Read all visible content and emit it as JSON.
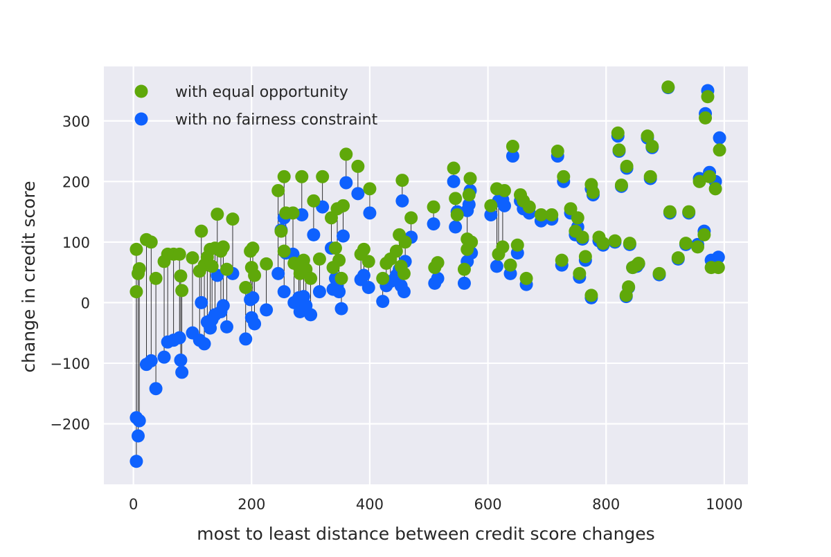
{
  "chart_data": {
    "type": "scatter",
    "title": "",
    "xlabel": "most to least distance between credit score changes",
    "ylabel": "change in credit score",
    "xlim": [
      -50,
      1040
    ],
    "ylim": [
      -300,
      390
    ],
    "xticks": [
      0,
      200,
      400,
      600,
      800,
      1000
    ],
    "yticks": [
      -200,
      -100,
      0,
      100,
      200,
      300
    ],
    "xtick_labels": [
      "0",
      "200",
      "400",
      "600",
      "800",
      "1000"
    ],
    "ytick_labels": [
      "−200",
      "−100",
      "0",
      "100",
      "200",
      "300"
    ],
    "grid": true,
    "legend_position": "upper-left",
    "background": "#eaeaf2",
    "connectors": "thin black vertical line joining each pair of points at the same x",
    "series": [
      {
        "name": "with equal opportunity",
        "color": "#5fa80a",
        "points": [
          [
            5,
            88
          ],
          [
            5,
            18
          ],
          [
            8,
            48
          ],
          [
            10,
            56
          ],
          [
            22,
            104
          ],
          [
            30,
            100
          ],
          [
            38,
            40
          ],
          [
            52,
            68
          ],
          [
            58,
            80
          ],
          [
            68,
            80
          ],
          [
            78,
            80
          ],
          [
            80,
            44
          ],
          [
            82,
            20
          ],
          [
            100,
            74
          ],
          [
            112,
            52
          ],
          [
            115,
            118
          ],
          [
            120,
            62
          ],
          [
            125,
            75
          ],
          [
            130,
            88
          ],
          [
            133,
            60
          ],
          [
            138,
            90
          ],
          [
            142,
            146
          ],
          [
            148,
            85
          ],
          [
            152,
            92
          ],
          [
            158,
            55
          ],
          [
            168,
            138
          ],
          [
            190,
            25
          ],
          [
            198,
            85
          ],
          [
            200,
            58
          ],
          [
            202,
            90
          ],
          [
            205,
            45
          ],
          [
            225,
            64
          ],
          [
            245,
            185
          ],
          [
            250,
            118
          ],
          [
            255,
            85
          ],
          [
            255,
            208
          ],
          [
            258,
            148
          ],
          [
            270,
            148
          ],
          [
            272,
            65
          ],
          [
            280,
            60
          ],
          [
            282,
            48
          ],
          [
            285,
            208
          ],
          [
            288,
            70
          ],
          [
            292,
            55
          ],
          [
            300,
            40
          ],
          [
            305,
            168
          ],
          [
            315,
            72
          ],
          [
            320,
            208
          ],
          [
            335,
            140
          ],
          [
            338,
            58
          ],
          [
            342,
            90
          ],
          [
            345,
            155
          ],
          [
            348,
            70
          ],
          [
            352,
            40
          ],
          [
            355,
            160
          ],
          [
            360,
            245
          ],
          [
            380,
            225
          ],
          [
            385,
            80
          ],
          [
            390,
            88
          ],
          [
            398,
            68
          ],
          [
            400,
            188
          ],
          [
            422,
            40
          ],
          [
            428,
            65
          ],
          [
            435,
            72
          ],
          [
            445,
            85
          ],
          [
            450,
            112
          ],
          [
            453,
            60
          ],
          [
            455,
            202
          ],
          [
            458,
            48
          ],
          [
            460,
            100
          ],
          [
            470,
            140
          ],
          [
            508,
            158
          ],
          [
            510,
            58
          ],
          [
            515,
            66
          ],
          [
            542,
            222
          ],
          [
            545,
            172
          ],
          [
            548,
            145
          ],
          [
            560,
            55
          ],
          [
            565,
            105
          ],
          [
            565,
            88
          ],
          [
            568,
            178
          ],
          [
            570,
            205
          ],
          [
            572,
            100
          ],
          [
            605,
            160
          ],
          [
            615,
            188
          ],
          [
            618,
            80
          ],
          [
            625,
            92
          ],
          [
            628,
            185
          ],
          [
            638,
            62
          ],
          [
            642,
            258
          ],
          [
            650,
            95
          ],
          [
            655,
            178
          ],
          [
            660,
            168
          ],
          [
            665,
            40
          ],
          [
            670,
            158
          ],
          [
            690,
            145
          ],
          [
            708,
            145
          ],
          [
            718,
            250
          ],
          [
            725,
            70
          ],
          [
            728,
            208
          ],
          [
            740,
            155
          ],
          [
            748,
            118
          ],
          [
            752,
            140
          ],
          [
            755,
            48
          ],
          [
            760,
            108
          ],
          [
            765,
            76
          ],
          [
            775,
            12
          ],
          [
            775,
            195
          ],
          [
            778,
            182
          ],
          [
            788,
            108
          ],
          [
            795,
            98
          ],
          [
            815,
            102
          ],
          [
            820,
            280
          ],
          [
            822,
            252
          ],
          [
            826,
            194
          ],
          [
            834,
            12
          ],
          [
            835,
            225
          ],
          [
            838,
            26
          ],
          [
            840,
            98
          ],
          [
            845,
            58
          ],
          [
            852,
            62
          ],
          [
            855,
            65
          ],
          [
            870,
            275
          ],
          [
            875,
            208
          ],
          [
            878,
            258
          ],
          [
            890,
            48
          ],
          [
            905,
            356
          ],
          [
            908,
            150
          ],
          [
            922,
            74
          ],
          [
            935,
            98
          ],
          [
            940,
            150
          ],
          [
            955,
            92
          ],
          [
            958,
            200
          ],
          [
            966,
            112
          ],
          [
            968,
            305
          ],
          [
            972,
            340
          ],
          [
            975,
            208
          ],
          [
            978,
            58
          ],
          [
            985,
            188
          ],
          [
            990,
            58
          ],
          [
            992,
            252
          ]
        ]
      },
      {
        "name": "with no fairness constraint",
        "color": "#0e61fe",
        "points": [
          [
            5,
            -262
          ],
          [
            5,
            -190
          ],
          [
            8,
            -220
          ],
          [
            10,
            -195
          ],
          [
            22,
            -102
          ],
          [
            30,
            -96
          ],
          [
            38,
            -142
          ],
          [
            52,
            -90
          ],
          [
            58,
            -65
          ],
          [
            68,
            -62
          ],
          [
            78,
            -58
          ],
          [
            80,
            -95
          ],
          [
            82,
            -115
          ],
          [
            100,
            -50
          ],
          [
            112,
            -62
          ],
          [
            115,
            0
          ],
          [
            120,
            -68
          ],
          [
            125,
            -32
          ],
          [
            130,
            -42
          ],
          [
            133,
            -28
          ],
          [
            138,
            -20
          ],
          [
            142,
            45
          ],
          [
            148,
            -15
          ],
          [
            152,
            -5
          ],
          [
            158,
            -40
          ],
          [
            168,
            48
          ],
          [
            190,
            -60
          ],
          [
            198,
            5
          ],
          [
            200,
            -25
          ],
          [
            202,
            8
          ],
          [
            205,
            -35
          ],
          [
            225,
            -12
          ],
          [
            245,
            48
          ],
          [
            250,
            120
          ],
          [
            255,
            18
          ],
          [
            255,
            140
          ],
          [
            258,
            82
          ],
          [
            270,
            80
          ],
          [
            272,
            0
          ],
          [
            280,
            8
          ],
          [
            282,
            -15
          ],
          [
            285,
            145
          ],
          [
            288,
            10
          ],
          [
            292,
            -5
          ],
          [
            300,
            -20
          ],
          [
            305,
            112
          ],
          [
            315,
            18
          ],
          [
            320,
            158
          ],
          [
            335,
            90
          ],
          [
            338,
            22
          ],
          [
            342,
            40
          ],
          [
            345,
            28
          ],
          [
            348,
            18
          ],
          [
            352,
            -10
          ],
          [
            355,
            110
          ],
          [
            360,
            198
          ],
          [
            380,
            180
          ],
          [
            385,
            38
          ],
          [
            390,
            45
          ],
          [
            398,
            25
          ],
          [
            400,
            148
          ],
          [
            422,
            2
          ],
          [
            428,
            28
          ],
          [
            435,
            35
          ],
          [
            445,
            45
          ],
          [
            450,
            55
          ],
          [
            453,
            28
          ],
          [
            455,
            168
          ],
          [
            458,
            18
          ],
          [
            460,
            68
          ],
          [
            470,
            108
          ],
          [
            508,
            130
          ],
          [
            510,
            32
          ],
          [
            515,
            40
          ],
          [
            542,
            200
          ],
          [
            545,
            125
          ],
          [
            548,
            150
          ],
          [
            560,
            32
          ],
          [
            565,
            68
          ],
          [
            565,
            152
          ],
          [
            568,
            162
          ],
          [
            570,
            185
          ],
          [
            572,
            82
          ],
          [
            605,
            145
          ],
          [
            615,
            60
          ],
          [
            618,
            168
          ],
          [
            625,
            170
          ],
          [
            628,
            160
          ],
          [
            638,
            48
          ],
          [
            642,
            242
          ],
          [
            650,
            82
          ],
          [
            655,
            168
          ],
          [
            660,
            155
          ],
          [
            665,
            30
          ],
          [
            670,
            148
          ],
          [
            690,
            135
          ],
          [
            708,
            138
          ],
          [
            718,
            242
          ],
          [
            725,
            62
          ],
          [
            728,
            200
          ],
          [
            740,
            148
          ],
          [
            748,
            112
          ],
          [
            752,
            125
          ],
          [
            755,
            42
          ],
          [
            760,
            105
          ],
          [
            765,
            70
          ],
          [
            775,
            8
          ],
          [
            775,
            188
          ],
          [
            778,
            178
          ],
          [
            788,
            102
          ],
          [
            795,
            95
          ],
          [
            815,
            100
          ],
          [
            820,
            275
          ],
          [
            822,
            250
          ],
          [
            826,
            192
          ],
          [
            834,
            10
          ],
          [
            835,
            222
          ],
          [
            838,
            25
          ],
          [
            840,
            96
          ],
          [
            845,
            58
          ],
          [
            852,
            60
          ],
          [
            855,
            64
          ],
          [
            870,
            272
          ],
          [
            875,
            205
          ],
          [
            878,
            256
          ],
          [
            890,
            46
          ],
          [
            905,
            355
          ],
          [
            908,
            148
          ],
          [
            922,
            72
          ],
          [
            935,
            96
          ],
          [
            940,
            148
          ],
          [
            955,
            96
          ],
          [
            958,
            205
          ],
          [
            966,
            118
          ],
          [
            968,
            312
          ],
          [
            972,
            350
          ],
          [
            975,
            215
          ],
          [
            978,
            70
          ],
          [
            985,
            200
          ],
          [
            990,
            75
          ],
          [
            992,
            272
          ]
        ]
      }
    ]
  }
}
